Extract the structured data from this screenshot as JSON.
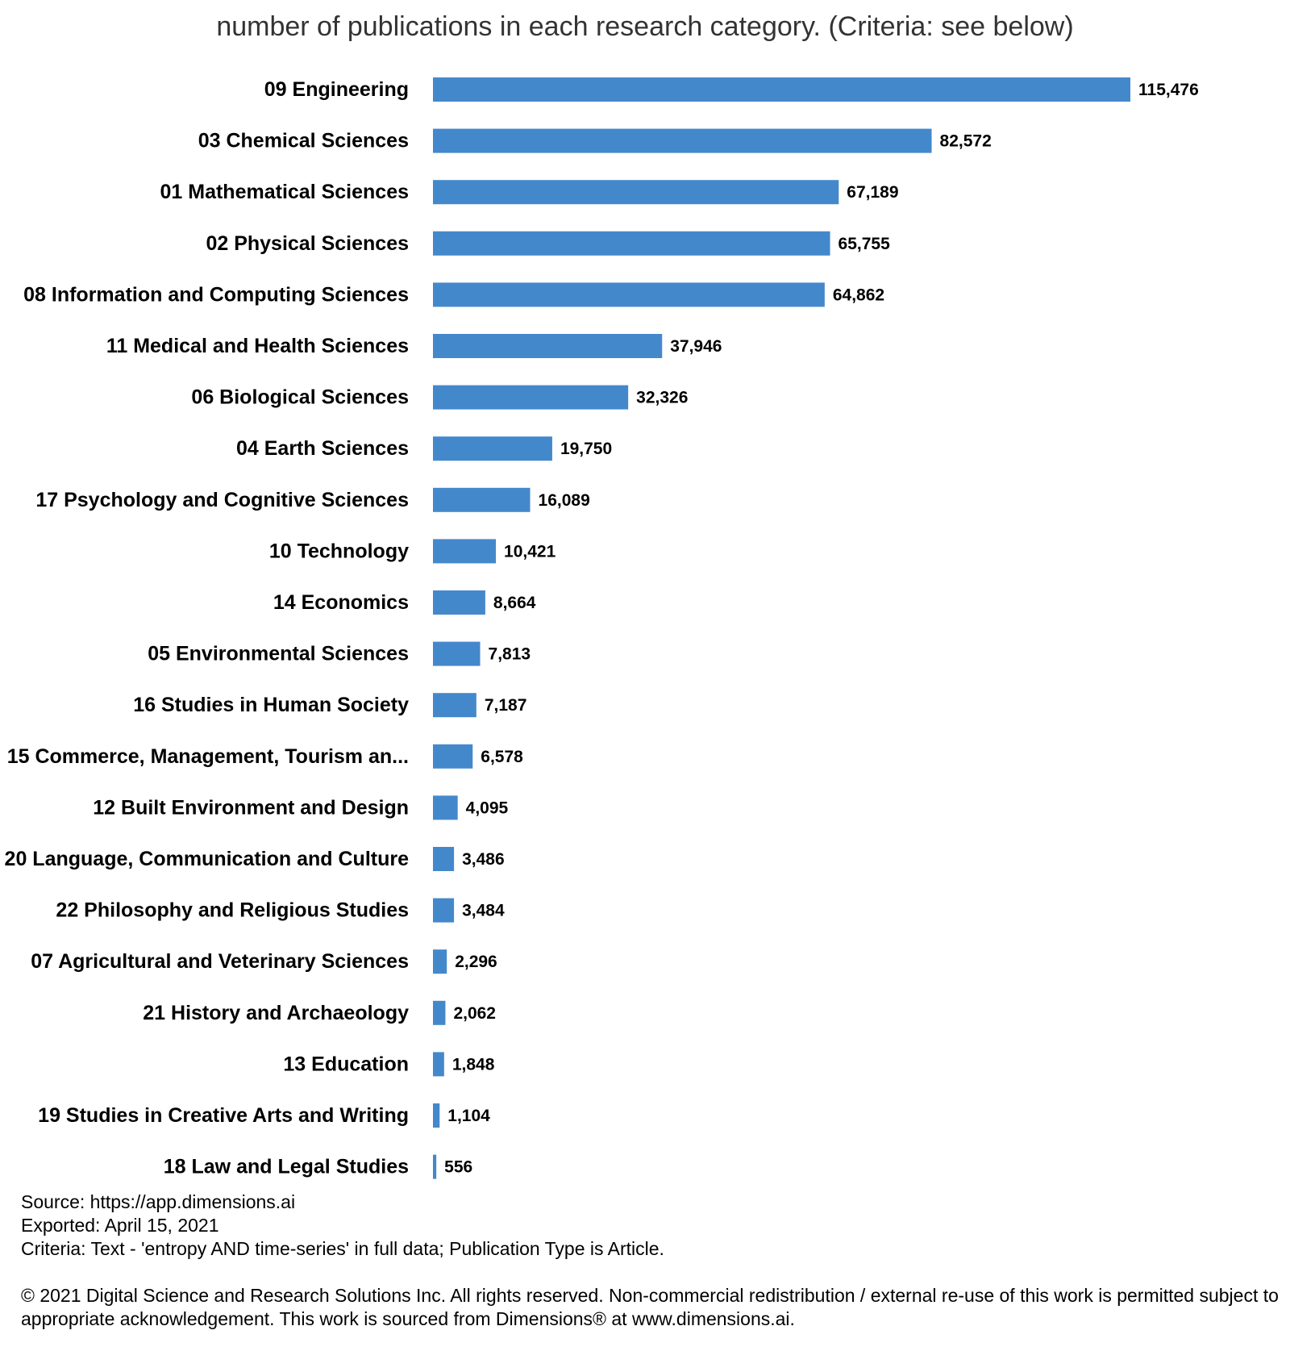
{
  "chart_data": {
    "type": "bar",
    "orientation": "horizontal",
    "title": "number of publications in each research category. (Criteria: see below)",
    "xlabel": "",
    "ylabel": "",
    "categories": [
      "09 Engineering",
      "03 Chemical Sciences",
      "01 Mathematical Sciences",
      "02 Physical Sciences",
      "08 Information and Computing Sciences",
      "11 Medical and Health Sciences",
      "06 Biological Sciences",
      "04 Earth Sciences",
      "17 Psychology and Cognitive Sciences",
      "10 Technology",
      "14 Economics",
      "05 Environmental Sciences",
      "16 Studies in Human Society",
      "15 Commerce, Management, Tourism an...",
      "12 Built Environment and Design",
      "20 Language, Communication and Culture",
      "22 Philosophy and Religious Studies",
      "07 Agricultural and Veterinary Sciences",
      "21 History and Archaeology",
      "13 Education",
      "19 Studies in Creative Arts and Writing",
      "18 Law and Legal Studies"
    ],
    "values": [
      115476,
      82572,
      67189,
      65755,
      64862,
      37946,
      32326,
      19750,
      16089,
      10421,
      8664,
      7813,
      7187,
      6578,
      4095,
      3486,
      3484,
      2296,
      2062,
      1848,
      1104,
      556
    ],
    "value_labels": [
      "115,476",
      "82,572",
      "67,189",
      "65,755",
      "64,862",
      "37,946",
      "32,326",
      "19,750",
      "16,089",
      "10,421",
      "8,664",
      "7,813",
      "7,187",
      "6,578",
      "4,095",
      "3,486",
      "3,484",
      "2,296",
      "2,062",
      "1,848",
      "1,104",
      "556"
    ],
    "xlim": [
      0,
      115476
    ],
    "grid": false,
    "legend": "none",
    "bar_color": "#4488cc"
  },
  "footer": {
    "source": "Source: https://app.dimensions.ai",
    "exported": "Exported: April 15, 2021",
    "criteria": "Criteria: Text - 'entropy AND time-series' in full data; Publication Type is Article.",
    "copyright": "© 2021 Digital Science and Research Solutions Inc. All rights reserved. Non-commercial redistribution / external re-use of this work is permitted subject to appropriate acknowledgement. This work is sourced from Dimensions® at www.dimensions.ai."
  }
}
